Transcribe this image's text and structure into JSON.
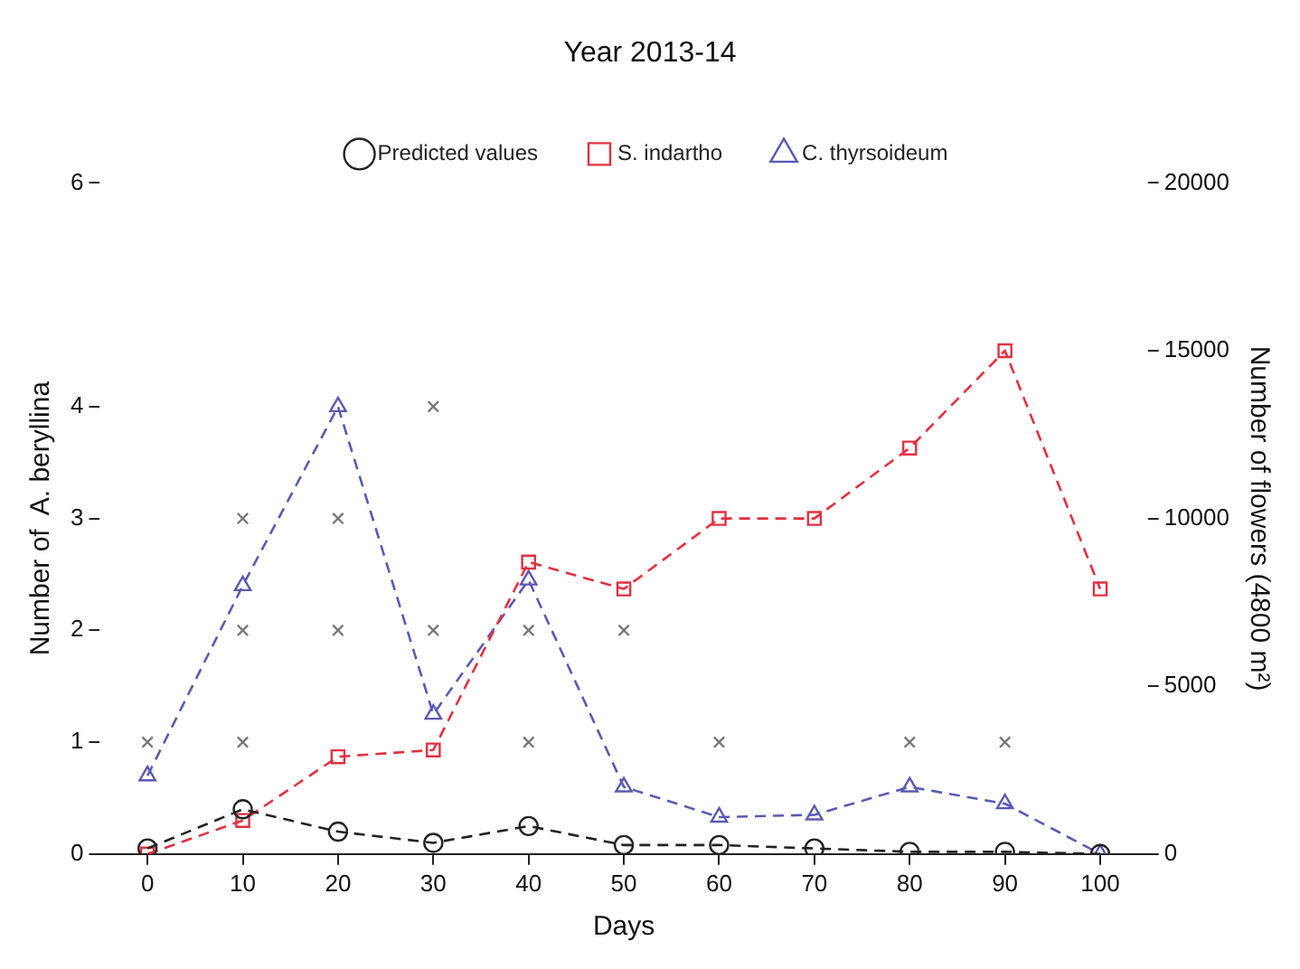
{
  "chart_data": {
    "type": "line",
    "title": "Year 2013-14",
    "xlabel": "Days",
    "ylabel": "Number of  A. beryllina",
    "y2label": "Number of flowers (4800 m²)",
    "x": [
      0,
      10,
      20,
      30,
      40,
      50,
      60,
      70,
      80,
      90,
      100
    ],
    "xlim": [
      -5,
      105
    ],
    "xticks": [
      0,
      10,
      20,
      30,
      40,
      50,
      60,
      70,
      80,
      90,
      100
    ],
    "ylim": [
      0,
      6
    ],
    "yticks": [
      0,
      1,
      2,
      3,
      4,
      6
    ],
    "y2lim": [
      0,
      20000
    ],
    "y2ticks": [
      0,
      5000,
      10000,
      15000,
      20000
    ],
    "grid": false,
    "legend": "top",
    "line_style": "dashed",
    "series": [
      {
        "name": "Predicted values",
        "color": "#222222",
        "marker": "circle",
        "values": [
          0.05,
          0.4,
          0.2,
          0.1,
          0.25,
          0.08,
          0.08,
          0.05,
          0.02,
          0.02,
          0
        ]
      },
      {
        "name": "S. indartho",
        "color": "#e23040",
        "marker": "square",
        "axis": "y2",
        "values": [
          0,
          1000,
          2900,
          3100,
          8700,
          7900,
          10000,
          10000,
          12100,
          15000,
          7900
        ]
      },
      {
        "name": "C. thyrsoideum",
        "color": "#5a5ab4",
        "marker": "triangle",
        "values": [
          0.7,
          2.4,
          4,
          1.25,
          2.45,
          0.6,
          0.33,
          0.35,
          0.6,
          0.45,
          0
        ]
      },
      {
        "type": "scatter",
        "color": "#777777",
        "marker": "cross",
        "x": [
          0,
          10,
          10,
          10,
          20,
          20,
          30,
          30,
          40,
          40,
          50,
          60,
          80,
          90
        ],
        "values": [
          1,
          3,
          2,
          1,
          3,
          2,
          4,
          2,
          2,
          1,
          2,
          1,
          1,
          1
        ]
      }
    ]
  }
}
